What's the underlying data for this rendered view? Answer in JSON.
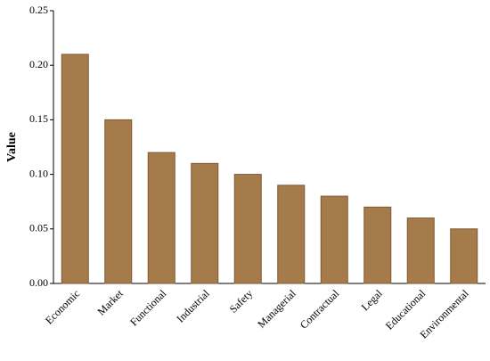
{
  "chart_data": {
    "type": "bar",
    "y_label": "Value",
    "categories": [
      "Economic",
      "Market",
      "Functional",
      "Industrial",
      "Safety",
      "Managerial",
      "Contractual",
      "Legal",
      "Educational",
      "Environmental"
    ],
    "values": [
      0.21,
      0.15,
      0.12,
      0.11,
      0.1,
      0.09,
      0.08,
      0.07,
      0.06,
      0.05
    ],
    "color": "#a67b4b",
    "edge_color": "#7d5a32",
    "ylim": [
      0,
      0.25
    ],
    "yticks": [
      {
        "value": 0,
        "label": "0.00"
      },
      0.05,
      {
        "value": 0.1,
        "label": "0.10"
      },
      0.15,
      {
        "value": 0.2,
        "label": "0.20"
      },
      0.25
    ],
    "grid": false
  }
}
